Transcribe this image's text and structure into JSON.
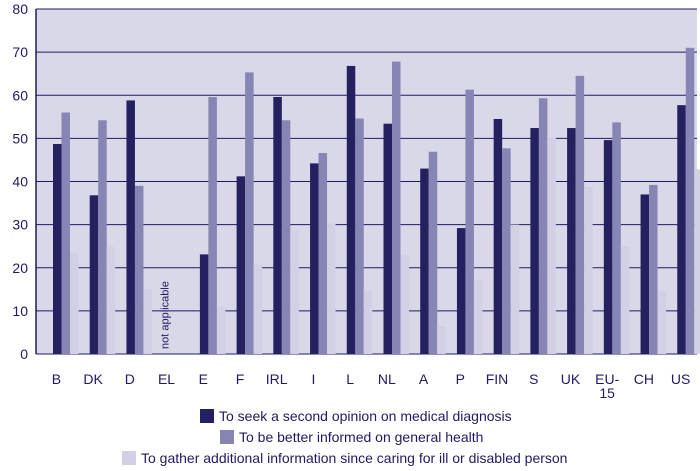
{
  "chart_data": {
    "type": "bar",
    "categories": [
      "B",
      "DK",
      "D",
      "EL",
      "E",
      "F",
      "IRL",
      "I",
      "L",
      "NL",
      "A",
      "P",
      "FIN",
      "S",
      "UK",
      "EU-15",
      "CH",
      "US"
    ],
    "series": [
      {
        "name": "To seek a second opinion on medical diagnosis",
        "color": "#25205f",
        "values": [
          48.7,
          36.8,
          58.8,
          null,
          23.1,
          41.2,
          59.6,
          44.2,
          66.8,
          53.4,
          43.0,
          29.2,
          54.5,
          52.4,
          52.4,
          49.6,
          37.0,
          57.7
        ]
      },
      {
        "name": "To be better informed on general health",
        "color": "#8785b4",
        "values": [
          56.0,
          54.2,
          39.0,
          null,
          59.6,
          65.3,
          54.2,
          46.6,
          54.6,
          67.8,
          46.9,
          61.3,
          47.7,
          59.3,
          64.5,
          53.7,
          39.2,
          71.0
        ]
      },
      {
        "name": "To gather additional information since caring for ill or disabled person",
        "color": "#d2d0e4",
        "values": [
          23.4,
          24.8,
          15.1,
          null,
          11.0,
          20.8,
          28.7,
          30.3,
          14.9,
          22.9,
          6.5,
          17.2,
          30.0,
          50.3,
          38.7,
          24.9,
          14.7,
          42.8
        ]
      }
    ],
    "ylim": [
      0,
      80
    ],
    "yticks": [
      0,
      10,
      20,
      30,
      40,
      50,
      60,
      70,
      80
    ],
    "grid": true,
    "legend_position": "bottom",
    "annotations": [
      {
        "category": "EL",
        "text": "not applicable"
      }
    ],
    "plot_background": "#d9d8e8",
    "grid_color": "#1f1b63"
  }
}
